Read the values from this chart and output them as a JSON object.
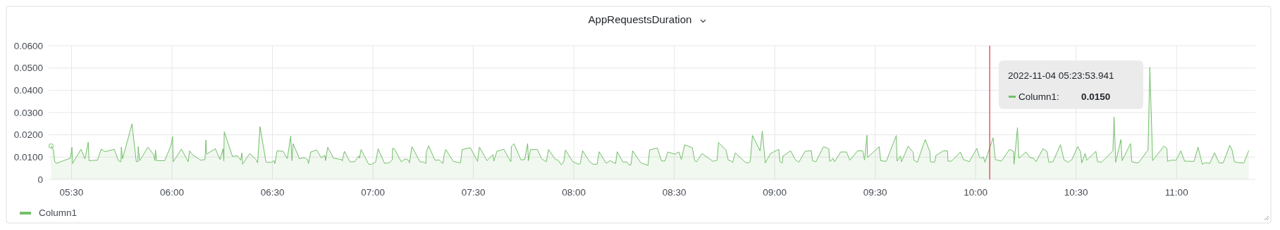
{
  "chart_data": {
    "type": "area",
    "title": "AppRequestsDuration",
    "x": [
      5.398,
      5.41,
      5.416,
      5.424,
      5.494,
      5.502,
      5.505,
      5.547,
      5.567,
      5.583,
      5.587,
      5.629,
      5.648,
      5.666,
      5.713,
      5.733,
      5.746,
      5.748,
      5.754,
      5.801,
      5.822,
      5.83,
      5.832,
      5.839,
      5.88,
      5.909,
      5.915,
      5.918,
      5.923,
      5.964,
      5.995,
      6.003,
      6.006,
      6.047,
      6.081,
      6.087,
      6.102,
      6.143,
      6.164,
      6.169,
      6.172,
      6.216,
      6.239,
      6.254,
      6.258,
      6.26,
      6.301,
      6.325,
      6.342,
      6.348,
      6.351,
      6.387,
      6.418,
      6.426,
      6.438,
      6.468,
      6.492,
      6.508,
      6.512,
      6.523,
      6.553,
      6.574,
      6.591,
      6.597,
      6.603,
      6.634,
      6.658,
      6.675,
      6.679,
      6.691,
      6.72,
      6.743,
      6.761,
      6.764,
      6.775,
      6.792,
      6.804,
      6.845,
      6.847,
      6.858,
      6.886,
      6.909,
      6.929,
      6.933,
      6.941,
      6.979,
      6.995,
      7.014,
      7.026,
      7.058,
      7.079,
      7.096,
      7.098,
      7.108,
      7.141,
      7.161,
      7.176,
      7.182,
      7.194,
      7.234,
      7.254,
      7.264,
      7.265,
      7.277,
      7.309,
      7.33,
      7.348,
      7.354,
      7.363,
      7.4,
      7.436,
      7.444,
      7.485,
      7.521,
      7.53,
      7.568,
      7.597,
      7.602,
      7.617,
      7.652,
      7.673,
      7.687,
      7.689,
      7.702,
      7.737,
      7.755,
      7.77,
      7.774,
      7.784,
      7.819,
      7.839,
      7.863,
      7.874,
      7.909,
      7.921,
      7.938,
      7.95,
      7.958,
      7.995,
      8.024,
      8.032,
      8.044,
      8.079,
      8.096,
      8.116,
      8.126,
      8.161,
      8.181,
      8.208,
      8.216,
      8.245,
      8.263,
      8.274,
      8.284,
      8.293,
      8.334,
      8.369,
      8.377,
      8.406,
      8.416,
      8.436,
      8.453,
      8.468,
      8.503,
      8.523,
      8.535,
      8.552,
      8.59,
      8.602,
      8.611,
      8.638,
      8.693,
      8.713,
      8.72,
      8.757,
      8.769,
      8.781,
      8.79,
      8.804,
      8.853,
      8.866,
      8.878,
      8.889,
      8.927,
      8.938,
      8.953,
      8.979,
      9.02,
      9.026,
      9.038,
      9.041,
      9.079,
      9.102,
      9.12,
      9.151,
      9.182,
      9.188,
      9.205,
      9.243,
      9.269,
      9.274,
      9.284,
      9.289,
      9.298,
      9.328,
      9.357,
      9.374,
      9.412,
      9.438,
      9.447,
      9.459,
      9.462,
      9.52,
      9.527,
      9.555,
      9.605,
      9.609,
      9.626,
      9.631,
      9.664,
      9.689,
      9.693,
      9.71,
      9.749,
      9.772,
      9.775,
      9.796,
      9.802,
      9.839,
      9.86,
      9.862,
      9.88,
      9.924,
      9.939,
      9.95,
      9.968,
      10.006,
      10.019,
      10.025,
      10.039,
      10.046,
      10.087,
      10.098,
      10.128,
      10.169,
      10.189,
      10.191,
      10.208,
      10.215,
      10.251,
      10.27,
      10.288,
      10.3,
      10.335,
      10.355,
      10.364,
      10.385,
      10.422,
      10.44,
      10.461,
      10.479,
      10.508,
      10.522,
      10.528,
      10.545,
      10.553,
      10.598,
      10.607,
      10.627,
      10.683,
      10.689,
      10.697,
      10.723,
      10.729,
      10.771,
      10.777,
      10.803,
      10.812,
      10.858,
      10.867,
      10.881,
      10.937,
      10.952,
      10.955,
      10.97,
      10.998,
      11.021,
      11.04,
      11.087,
      11.107,
      11.128,
      11.139,
      11.165,
      11.189,
      11.212,
      11.232,
      11.265,
      11.276,
      11.288,
      11.314,
      11.335,
      11.359
    ],
    "series": [
      {
        "name": "Column1",
        "color": "#73bf69",
        "values": [
          0.015,
          0.0132,
          0.0082,
          0.0072,
          0.0095,
          0.0144,
          0.0071,
          0.0135,
          0.0092,
          0.0167,
          0.0084,
          0.0086,
          0.0136,
          0.0124,
          0.0135,
          0.0084,
          0.0079,
          0.0145,
          0.0092,
          0.0249,
          0.0081,
          0.0079,
          0.0147,
          0.0084,
          0.0144,
          0.0111,
          0.0084,
          0.0132,
          0.0084,
          0.0084,
          0.0153,
          0.0192,
          0.0079,
          0.0136,
          0.0079,
          0.0128,
          0.0111,
          0.0086,
          0.0089,
          0.0177,
          0.0113,
          0.0138,
          0.0089,
          0.0137,
          0.0082,
          0.0214,
          0.0103,
          0.0106,
          0.0086,
          0.0119,
          0.0068,
          0.0116,
          0.0089,
          0.0074,
          0.0237,
          0.0077,
          0.0076,
          0.0084,
          0.0071,
          0.0128,
          0.0126,
          0.0093,
          0.0195,
          0.0084,
          0.016,
          0.0093,
          0.0098,
          0.0089,
          0.0071,
          0.0123,
          0.0132,
          0.0097,
          0.0108,
          0.0084,
          0.0144,
          0.0116,
          0.0095,
          0.0089,
          0.0082,
          0.0126,
          0.0079,
          0.0079,
          0.0105,
          0.0095,
          0.0134,
          0.0068,
          0.0068,
          0.0079,
          0.0137,
          0.0072,
          0.0074,
          0.0087,
          0.014,
          0.0135,
          0.0079,
          0.0092,
          0.0087,
          0.0074,
          0.0147,
          0.0079,
          0.0077,
          0.0071,
          0.0118,
          0.0151,
          0.0086,
          0.0087,
          0.0071,
          0.0108,
          0.0134,
          0.0081,
          0.0074,
          0.0134,
          0.0142,
          0.0081,
          0.0145,
          0.0084,
          0.0111,
          0.0082,
          0.0126,
          0.0135,
          0.01,
          0.0079,
          0.0147,
          0.016,
          0.0087,
          0.0089,
          0.0161,
          0.0084,
          0.0134,
          0.0134,
          0.0093,
          0.0079,
          0.0134,
          0.0089,
          0.0087,
          0.0065,
          0.0079,
          0.0132,
          0.0079,
          0.0068,
          0.0071,
          0.0128,
          0.0079,
          0.0068,
          0.0068,
          0.0124,
          0.0072,
          0.0084,
          0.0071,
          0.0124,
          0.0077,
          0.0079,
          0.0065,
          0.0065,
          0.0128,
          0.0074,
          0.0063,
          0.0132,
          0.0139,
          0.014,
          0.0084,
          0.0082,
          0.0123,
          0.0113,
          0.0123,
          0.0089,
          0.0155,
          0.0142,
          0.0084,
          0.0079,
          0.0116,
          0.0081,
          0.0086,
          0.0165,
          0.0132,
          0.0086,
          0.0084,
          0.0076,
          0.0119,
          0.0077,
          0.0074,
          0.0079,
          0.0197,
          0.0128,
          0.0216,
          0.0074,
          0.0116,
          0.0135,
          0.0079,
          0.0074,
          0.0105,
          0.0128,
          0.0089,
          0.0077,
          0.0126,
          0.0129,
          0.0084,
          0.0079,
          0.0147,
          0.0137,
          0.0081,
          0.0087,
          0.0095,
          0.0079,
          0.0123,
          0.0123,
          0.0086,
          0.0128,
          0.0128,
          0.0087,
          0.0198,
          0.0098,
          0.0147,
          0.0084,
          0.0081,
          0.0197,
          0.0082,
          0.0105,
          0.0079,
          0.0149,
          0.0121,
          0.0086,
          0.0077,
          0.0179,
          0.0124,
          0.0079,
          0.0077,
          0.0107,
          0.0128,
          0.0128,
          0.0082,
          0.0082,
          0.0123,
          0.0089,
          0.0086,
          0.0079,
          0.0139,
          0.01,
          0.0095,
          0.01,
          0.0077,
          0.0187,
          0.0089,
          0.0082,
          0.0135,
          0.0126,
          0.0068,
          0.0232,
          0.0095,
          0.0123,
          0.0098,
          0.0095,
          0.0079,
          0.0137,
          0.0126,
          0.0077,
          0.0079,
          0.0156,
          0.0087,
          0.0077,
          0.0089,
          0.0147,
          0.0124,
          0.0074,
          0.0116,
          0.0086,
          0.0126,
          0.0079,
          0.0077,
          0.0128,
          0.028,
          0.0077,
          0.0179,
          0.0084,
          0.0161,
          0.0079,
          0.0074,
          0.0076,
          0.0132,
          0.0503,
          0.0084,
          0.0149,
          0.0139,
          0.0081,
          0.0086,
          0.0086,
          0.0128,
          0.0082,
          0.0081,
          0.0145,
          0.0068,
          0.0074,
          0.0072,
          0.0119,
          0.0074,
          0.0074,
          0.0153,
          0.0132,
          0.0079,
          0.0074,
          0.0074,
          0.0129
        ]
      }
    ],
    "xlim": [
      5.386,
      11.392
    ],
    "xticks": [
      {
        "value": 5.5,
        "label": "05:30"
      },
      {
        "value": 6,
        "label": "06:00"
      },
      {
        "value": 6.5,
        "label": "06:30"
      },
      {
        "value": 7,
        "label": "07:00"
      },
      {
        "value": 7.5,
        "label": "07:30"
      },
      {
        "value": 8,
        "label": "08:00"
      },
      {
        "value": 8.5,
        "label": "08:30"
      },
      {
        "value": 9,
        "label": "09:00"
      },
      {
        "value": 9.5,
        "label": "09:30"
      },
      {
        "value": 10,
        "label": "10:00"
      },
      {
        "value": 10.5,
        "label": "10:30"
      },
      {
        "value": 11,
        "label": "11:00"
      }
    ],
    "ylim": [
      0,
      0.06
    ],
    "yticks": [
      0,
      {
        "value": 0.01,
        "label": "0.0100"
      },
      {
        "value": 0.02,
        "label": "0.0200"
      },
      {
        "value": 0.03,
        "label": "0.0300"
      },
      {
        "value": 0.04,
        "label": "0.0400"
      },
      {
        "value": 0.05,
        "label": "0.0500"
      },
      {
        "value": 0.06,
        "label": "0.0600"
      }
    ],
    "grid": true,
    "legend": "bottom",
    "ref_lines": [
      {
        "axis": "x",
        "value": 10.07,
        "color": "#e02f44"
      }
    ],
    "annotations": [
      "2022-11-04 05:23:53.941",
      "Column1:",
      "0.0150"
    ]
  }
}
